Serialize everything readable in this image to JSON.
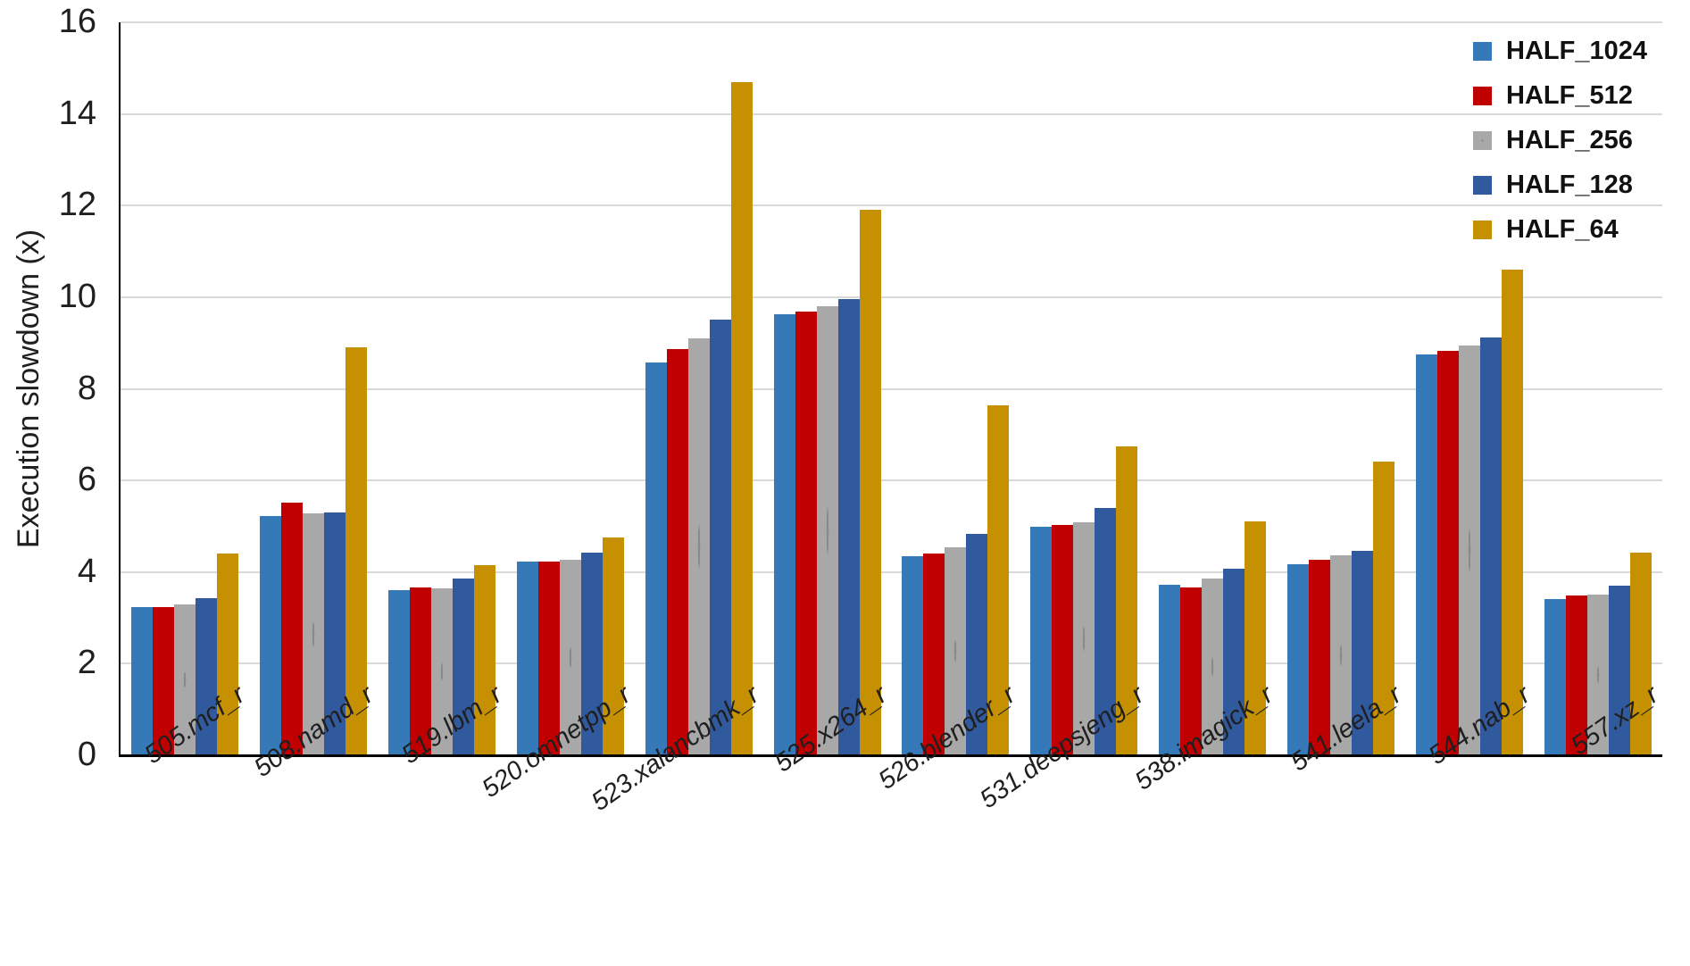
{
  "chart_data": {
    "type": "bar",
    "title": "",
    "xlabel": "",
    "ylabel": "Execution slowdown (x)",
    "ylim": [
      0,
      16
    ],
    "ytick_step": 2,
    "ytick_labels": [
      "0",
      "2",
      "4",
      "6",
      "8",
      "10",
      "12",
      "14",
      "16"
    ],
    "grid": true,
    "legend_position": "top-right",
    "categories": [
      "505.mcf_r",
      "508.namd_r",
      "519.lbm_r",
      "520.omnetpp_r",
      "523.xalancbmk_r",
      "525.x264_r",
      "526.blender_r",
      "531.deepsjeng_r",
      "538.imagick_r",
      "541.leela_r",
      "544.nab_r",
      "557.xz_r"
    ],
    "series": [
      {
        "name": "HALF_1024",
        "color": "#3579B9",
        "pattern": "solid",
        "values": [
          3.23,
          5.22,
          3.6,
          4.22,
          8.58,
          9.63,
          4.35,
          4.98,
          3.73,
          4.18,
          8.75,
          3.42
        ]
      },
      {
        "name": "HALF_512",
        "color": "#C00000",
        "pattern": "solid",
        "values": [
          3.23,
          5.51,
          3.66,
          4.22,
          8.87,
          9.68,
          4.41,
          5.02,
          3.67,
          4.26,
          8.83,
          3.48
        ]
      },
      {
        "name": "HALF_256",
        "color": "#A8A8A8",
        "pattern": "dots",
        "values": [
          3.3,
          5.29,
          3.65,
          4.26,
          9.1,
          9.8,
          4.55,
          5.08,
          3.86,
          4.37,
          8.95,
          3.5
        ]
      },
      {
        "name": "HALF_128",
        "color": "#31599E",
        "pattern": "solid",
        "values": [
          3.43,
          5.31,
          3.85,
          4.42,
          9.52,
          9.95,
          4.84,
          5.4,
          4.07,
          4.47,
          9.12,
          3.7
        ]
      },
      {
        "name": "HALF_64",
        "color": "#C59102",
        "pattern": "solid",
        "values": [
          4.4,
          8.9,
          4.15,
          4.75,
          14.7,
          11.9,
          7.63,
          6.75,
          5.1,
          6.41,
          10.6,
          4.43
        ]
      }
    ],
    "axis_colors": {
      "axis_line": "#000000",
      "gridline": "#D9D9D9",
      "text": "#1F1F1F"
    }
  }
}
